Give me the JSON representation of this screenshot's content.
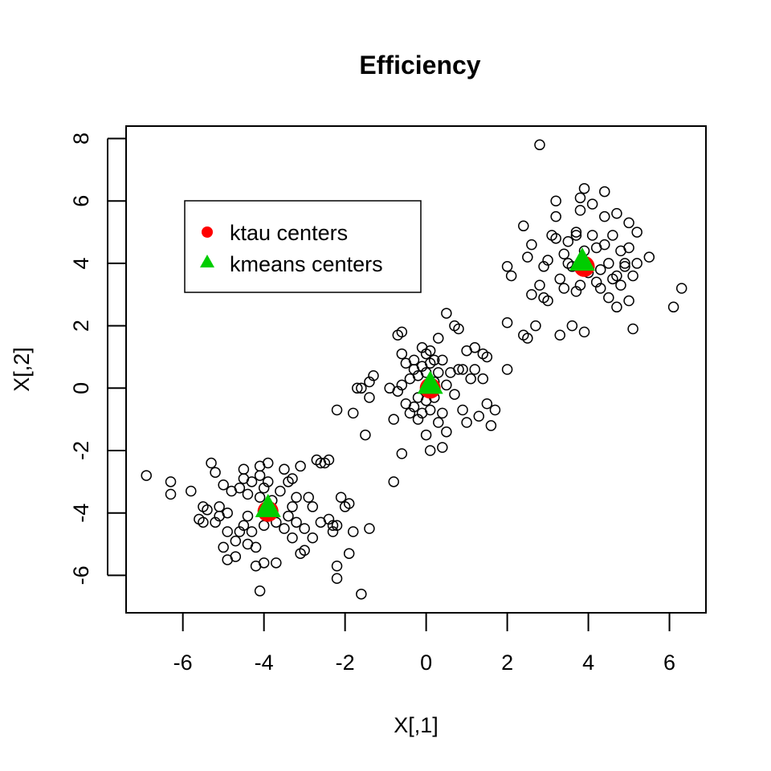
{
  "chart_data": {
    "type": "scatter",
    "title": "Efficiency",
    "xlabel": "X[,1]",
    "ylabel": "X[,2]",
    "xlim": [
      -7.4,
      6.9
    ],
    "ylim": [
      -7.2,
      8.4
    ],
    "xticks": [
      -6,
      -4,
      -2,
      0,
      2,
      4,
      6
    ],
    "yticks": [
      -6,
      -4,
      -2,
      0,
      2,
      4,
      6,
      8
    ],
    "grid": false,
    "legend": {
      "placement": "top-left",
      "entries": [
        {
          "label": "ktau centers",
          "marker": "circle",
          "color": "#ff0000"
        },
        {
          "label": "kmeans centers",
          "marker": "triangle",
          "color": "#00cd00"
        }
      ]
    },
    "ktau_centers": [
      {
        "x": -3.9,
        "y": -3.95
      },
      {
        "x": 0.1,
        "y": 0.0
      },
      {
        "x": 3.9,
        "y": 3.9
      }
    ],
    "kmeans_centers": [
      {
        "x": -3.9,
        "y": -3.85
      },
      {
        "x": 0.1,
        "y": 0.1
      },
      {
        "x": 3.85,
        "y": 4.05
      }
    ],
    "points": [
      [
        -6.9,
        -2.8
      ],
      [
        -6.3,
        -3.0
      ],
      [
        -6.3,
        -3.4
      ],
      [
        -5.8,
        -3.3
      ],
      [
        -5.6,
        -4.2
      ],
      [
        -5.5,
        -4.3
      ],
      [
        -5.5,
        -3.8
      ],
      [
        -5.4,
        -3.9
      ],
      [
        -5.3,
        -2.4
      ],
      [
        -5.2,
        -2.7
      ],
      [
        -5.2,
        -4.3
      ],
      [
        -5.1,
        -4.1
      ],
      [
        -5.1,
        -3.8
      ],
      [
        -5.0,
        -5.1
      ],
      [
        -5.0,
        -3.1
      ],
      [
        -4.9,
        -4.0
      ],
      [
        -4.9,
        -4.6
      ],
      [
        -4.9,
        -5.5
      ],
      [
        -4.8,
        -3.3
      ],
      [
        -4.7,
        -4.9
      ],
      [
        -4.7,
        -5.4
      ],
      [
        -4.6,
        -3.2
      ],
      [
        -4.6,
        -4.6
      ],
      [
        -4.5,
        -2.6
      ],
      [
        -4.5,
        -2.9
      ],
      [
        -4.5,
        -4.4
      ],
      [
        -4.4,
        -3.4
      ],
      [
        -4.4,
        -4.1
      ],
      [
        -4.4,
        -5.0
      ],
      [
        -4.3,
        -3.0
      ],
      [
        -4.3,
        -4.6
      ],
      [
        -4.2,
        -5.1
      ],
      [
        -4.2,
        -5.7
      ],
      [
        -4.1,
        -2.5
      ],
      [
        -4.1,
        -2.8
      ],
      [
        -4.1,
        -3.5
      ],
      [
        -4.1,
        -6.5
      ],
      [
        -4.0,
        -3.2
      ],
      [
        -4.0,
        -4.4
      ],
      [
        -4.0,
        -5.6
      ],
      [
        -3.9,
        -2.4
      ],
      [
        -3.9,
        -3.0
      ],
      [
        -3.8,
        -3.6
      ],
      [
        -3.7,
        -4.3
      ],
      [
        -3.7,
        -5.6
      ],
      [
        -3.6,
        -3.3
      ],
      [
        -3.5,
        -2.6
      ],
      [
        -3.5,
        -4.5
      ],
      [
        -3.4,
        -3.0
      ],
      [
        -3.4,
        -4.1
      ],
      [
        -3.3,
        -2.9
      ],
      [
        -3.3,
        -3.8
      ],
      [
        -3.3,
        -4.8
      ],
      [
        -3.2,
        -3.5
      ],
      [
        -3.2,
        -4.3
      ],
      [
        -3.1,
        -2.5
      ],
      [
        -3.1,
        -5.3
      ],
      [
        -3.0,
        -4.5
      ],
      [
        -3.0,
        -5.2
      ],
      [
        -2.9,
        -3.5
      ],
      [
        -2.8,
        -3.8
      ],
      [
        -2.8,
        -4.8
      ],
      [
        -2.7,
        -2.3
      ],
      [
        -2.6,
        -2.4
      ],
      [
        -2.6,
        -4.3
      ],
      [
        -2.5,
        -2.4
      ],
      [
        -2.4,
        -4.2
      ],
      [
        -2.4,
        -2.3
      ],
      [
        -2.3,
        -4.4
      ],
      [
        -2.3,
        -4.6
      ],
      [
        -2.2,
        -4.4
      ],
      [
        -2.2,
        -5.7
      ],
      [
        -2.2,
        -6.1
      ],
      [
        -2.1,
        -3.5
      ],
      [
        -2.0,
        -3.8
      ],
      [
        -1.9,
        -3.7
      ],
      [
        -1.9,
        -5.3
      ],
      [
        -1.8,
        -4.6
      ],
      [
        -1.6,
        -6.6
      ],
      [
        -1.4,
        -4.5
      ],
      [
        -2.2,
        -0.7
      ],
      [
        -1.8,
        -0.8
      ],
      [
        -1.7,
        0.0
      ],
      [
        -1.6,
        0.0
      ],
      [
        -1.5,
        -1.5
      ],
      [
        -1.4,
        -0.3
      ],
      [
        -1.4,
        0.2
      ],
      [
        -1.3,
        0.4
      ],
      [
        -0.9,
        0.0
      ],
      [
        -0.8,
        -1.0
      ],
      [
        -0.8,
        -3.0
      ],
      [
        -0.7,
        1.7
      ],
      [
        -0.7,
        -0.1
      ],
      [
        -0.6,
        1.1
      ],
      [
        -0.6,
        1.8
      ],
      [
        -0.6,
        0.1
      ],
      [
        -0.6,
        -2.1
      ],
      [
        -0.5,
        0.8
      ],
      [
        -0.5,
        -0.5
      ],
      [
        -0.4,
        0.3
      ],
      [
        -0.4,
        -0.8
      ],
      [
        -0.3,
        0.6
      ],
      [
        -0.3,
        0.9
      ],
      [
        -0.3,
        -0.6
      ],
      [
        -0.2,
        0.4
      ],
      [
        -0.2,
        -0.3
      ],
      [
        -0.2,
        -1.0
      ],
      [
        -0.1,
        0.7
      ],
      [
        -0.1,
        1.3
      ],
      [
        -0.1,
        -0.8
      ],
      [
        0.0,
        0.5
      ],
      [
        0.0,
        1.1
      ],
      [
        0.0,
        -0.4
      ],
      [
        0.0,
        -1.5
      ],
      [
        0.1,
        0.8
      ],
      [
        0.1,
        1.2
      ],
      [
        0.1,
        -0.7
      ],
      [
        0.1,
        -2.0
      ],
      [
        0.2,
        0.2
      ],
      [
        0.2,
        0.9
      ],
      [
        0.2,
        -0.3
      ],
      [
        0.3,
        1.6
      ],
      [
        0.3,
        -1.1
      ],
      [
        0.3,
        0.5
      ],
      [
        0.4,
        0.9
      ],
      [
        0.4,
        -0.8
      ],
      [
        0.4,
        -1.9
      ],
      [
        0.5,
        2.4
      ],
      [
        0.5,
        0.1
      ],
      [
        0.5,
        -1.4
      ],
      [
        0.6,
        0.5
      ],
      [
        0.7,
        2.0
      ],
      [
        0.7,
        -0.2
      ],
      [
        0.8,
        1.9
      ],
      [
        0.8,
        0.6
      ],
      [
        0.9,
        -0.7
      ],
      [
        0.9,
        0.6
      ],
      [
        1.0,
        1.2
      ],
      [
        1.0,
        -1.1
      ],
      [
        1.1,
        0.3
      ],
      [
        1.2,
        1.3
      ],
      [
        1.2,
        0.6
      ],
      [
        1.3,
        -0.9
      ],
      [
        1.4,
        1.1
      ],
      [
        1.4,
        0.3
      ],
      [
        1.5,
        1.0
      ],
      [
        1.5,
        -0.5
      ],
      [
        1.6,
        -1.2
      ],
      [
        1.7,
        -0.7
      ],
      [
        2.0,
        0.6
      ],
      [
        2.0,
        2.1
      ],
      [
        2.0,
        3.9
      ],
      [
        2.1,
        3.6
      ],
      [
        2.4,
        1.7
      ],
      [
        2.4,
        5.2
      ],
      [
        2.5,
        4.2
      ],
      [
        2.5,
        1.6
      ],
      [
        2.6,
        3.0
      ],
      [
        2.6,
        4.6
      ],
      [
        2.7,
        2.0
      ],
      [
        2.8,
        3.3
      ],
      [
        2.8,
        7.8
      ],
      [
        2.9,
        3.9
      ],
      [
        2.9,
        2.9
      ],
      [
        3.0,
        4.1
      ],
      [
        3.0,
        2.8
      ],
      [
        3.1,
        4.9
      ],
      [
        3.2,
        4.8
      ],
      [
        3.2,
        5.5
      ],
      [
        3.2,
        6.0
      ],
      [
        3.3,
        1.7
      ],
      [
        3.3,
        3.5
      ],
      [
        3.4,
        4.3
      ],
      [
        3.4,
        3.2
      ],
      [
        3.5,
        4.0
      ],
      [
        3.5,
        4.7
      ],
      [
        3.6,
        2.0
      ],
      [
        3.6,
        3.9
      ],
      [
        3.7,
        3.1
      ],
      [
        3.7,
        4.9
      ],
      [
        3.7,
        5.0
      ],
      [
        3.8,
        6.1
      ],
      [
        3.8,
        5.7
      ],
      [
        3.8,
        3.3
      ],
      [
        3.9,
        1.8
      ],
      [
        3.9,
        6.4
      ],
      [
        3.9,
        4.4
      ],
      [
        4.0,
        3.7
      ],
      [
        4.1,
        4.9
      ],
      [
        4.1,
        5.9
      ],
      [
        4.2,
        3.4
      ],
      [
        4.2,
        4.5
      ],
      [
        4.3,
        3.8
      ],
      [
        4.3,
        3.2
      ],
      [
        4.4,
        4.6
      ],
      [
        4.4,
        6.3
      ],
      [
        4.4,
        5.5
      ],
      [
        4.5,
        2.9
      ],
      [
        4.5,
        4.0
      ],
      [
        4.6,
        3.5
      ],
      [
        4.6,
        4.9
      ],
      [
        4.7,
        5.6
      ],
      [
        4.7,
        2.6
      ],
      [
        4.7,
        3.6
      ],
      [
        4.8,
        4.4
      ],
      [
        4.8,
        3.3
      ],
      [
        4.9,
        4.0
      ],
      [
        4.9,
        3.9
      ],
      [
        5.0,
        5.3
      ],
      [
        5.0,
        2.8
      ],
      [
        5.0,
        4.5
      ],
      [
        5.1,
        1.9
      ],
      [
        5.1,
        3.6
      ],
      [
        5.2,
        5.0
      ],
      [
        5.2,
        4.0
      ],
      [
        5.5,
        4.2
      ],
      [
        6.1,
        2.6
      ],
      [
        6.3,
        3.2
      ]
    ]
  }
}
